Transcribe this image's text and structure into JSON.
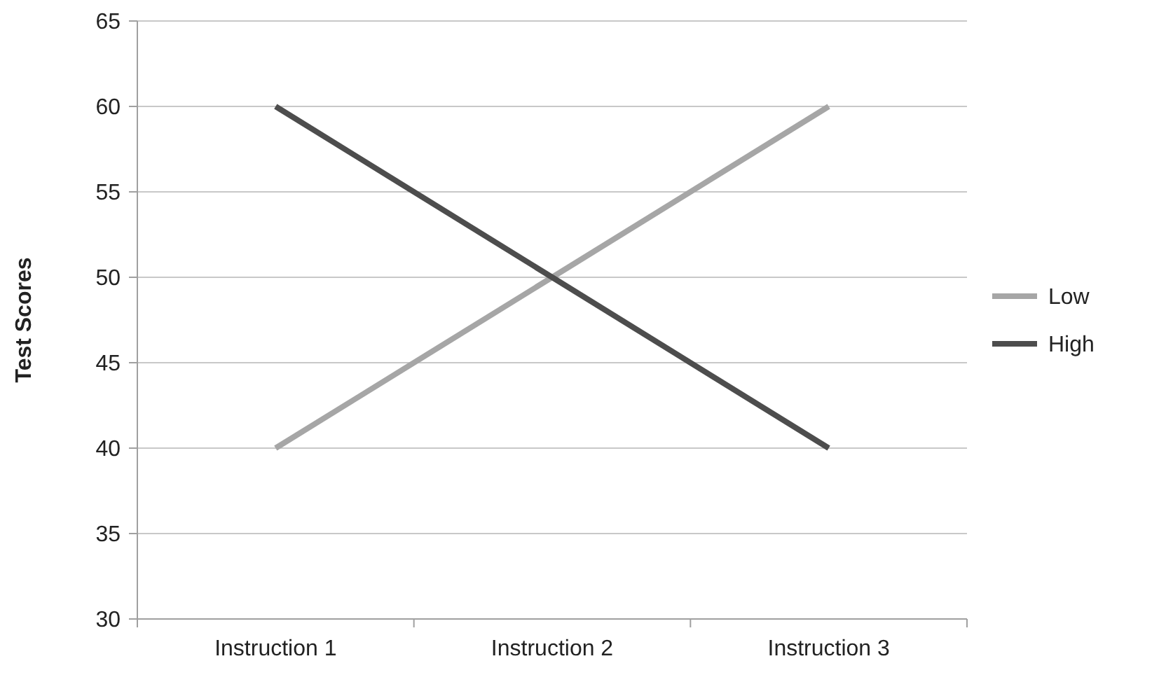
{
  "chart_data": {
    "type": "line",
    "ylabel": "Test Scores",
    "categories": [
      "Instruction 1",
      "Instruction 2",
      "Instruction 3"
    ],
    "series": [
      {
        "name": "Low",
        "color": "#a6a6a6",
        "values": [
          40,
          50,
          60
        ]
      },
      {
        "name": "High",
        "color": "#4d4d4d",
        "values": [
          60,
          50,
          40
        ]
      }
    ],
    "ylim": [
      30,
      65
    ],
    "yticks": [
      30,
      35,
      40,
      45,
      50,
      55,
      60,
      65
    ],
    "grid": "y",
    "legend": "right",
    "marker": "none",
    "line_style": "solid"
  }
}
